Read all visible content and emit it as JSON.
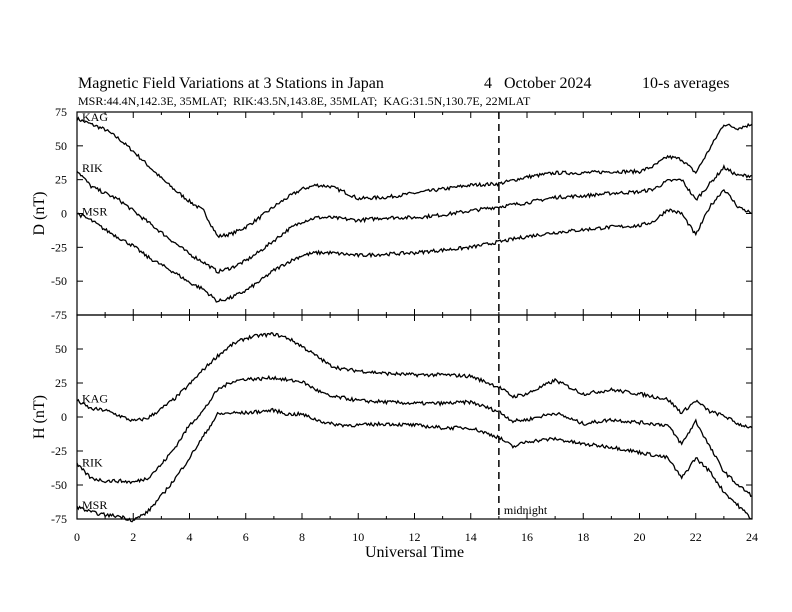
{
  "header": {
    "title": "Magnetic Field Variations at 3 Stations in Japan",
    "date": "4   October 2024",
    "averaging": "10-s averages",
    "stations": "MSR:44.4N,142.3E, 35MLAT;  RIK:43.5N,143.8E, 35MLAT;  KAG:31.5N,130.7E, 22MLAT"
  },
  "chart_data": [
    {
      "type": "line",
      "ylabel": "D (nT)",
      "xlabel": "",
      "xlim": [
        0,
        24
      ],
      "ylim": [
        -75,
        75
      ],
      "yticks": [
        75,
        50,
        25,
        0,
        -25,
        -50,
        -75
      ],
      "series": [
        {
          "name": "KAG",
          "x": [
            0,
            0.5,
            1,
            1.5,
            2,
            2.5,
            3,
            3.5,
            4,
            4.5,
            5,
            5.5,
            6,
            6.5,
            7,
            7.5,
            8,
            8.5,
            9,
            9.5,
            10,
            11,
            12,
            13,
            14,
            15,
            16,
            17,
            18,
            19,
            20,
            20.5,
            21,
            21.5,
            22,
            22.5,
            23,
            23.5,
            24
          ],
          "y": [
            70,
            66,
            62,
            55,
            46,
            36,
            26,
            17,
            9,
            2,
            -17,
            -15,
            -10,
            -3,
            5,
            12,
            18,
            21,
            20,
            16,
            11,
            12,
            15,
            18,
            21,
            22,
            27,
            30,
            30,
            31,
            31,
            35,
            42,
            40,
            30,
            48,
            66,
            63,
            66
          ]
        },
        {
          "name": "RIK",
          "x": [
            0,
            0.5,
            1,
            1.5,
            2,
            2.5,
            3,
            3.5,
            4,
            4.5,
            5,
            5.5,
            6,
            6.5,
            7,
            7.5,
            8,
            8.5,
            9,
            9.5,
            10,
            11,
            12,
            13,
            14,
            15,
            16,
            17,
            18,
            19,
            20,
            20.5,
            21,
            21.5,
            22,
            22.5,
            23,
            23.5,
            24
          ],
          "y": [
            32,
            20,
            15,
            10,
            2,
            -6,
            -14,
            -22,
            -30,
            -36,
            -43,
            -40,
            -35,
            -28,
            -20,
            -12,
            -6,
            -3,
            -3,
            -4,
            -5,
            -3,
            -3,
            -1,
            2,
            5,
            8,
            12,
            13,
            15,
            16,
            18,
            24,
            25,
            10,
            22,
            34,
            28,
            28
          ]
        },
        {
          "name": "MSR",
          "x": [
            0,
            0.5,
            1,
            1.5,
            2,
            2.5,
            3,
            3.5,
            4,
            4.5,
            5,
            5.5,
            6,
            6.5,
            7,
            7.5,
            8,
            8.5,
            9,
            9.5,
            10,
            11,
            12,
            13,
            14,
            15,
            16,
            17,
            18,
            19,
            20,
            20.5,
            21,
            21.5,
            22,
            22.5,
            23,
            23.5,
            24
          ],
          "y": [
            0,
            -5,
            -12,
            -18,
            -24,
            -32,
            -38,
            -44,
            -51,
            -56,
            -65,
            -62,
            -57,
            -50,
            -42,
            -36,
            -31,
            -29,
            -29,
            -30,
            -31,
            -30,
            -29,
            -27,
            -25,
            -21,
            -17,
            -14,
            -12,
            -10,
            -9,
            -6,
            3,
            0,
            -16,
            5,
            18,
            5,
            0
          ]
        }
      ]
    },
    {
      "type": "line",
      "ylabel": "H (nT)",
      "xlabel": "Universal Time",
      "xlim": [
        0,
        24
      ],
      "ylim": [
        -75,
        75
      ],
      "yticks": [
        50,
        25,
        0,
        -25,
        -50,
        -75
      ],
      "xticks": [
        0,
        2,
        4,
        6,
        8,
        10,
        12,
        14,
        16,
        18,
        20,
        22,
        24
      ],
      "annotation": {
        "x": 15,
        "label": "midnight"
      },
      "series": [
        {
          "name": "KAG",
          "x": [
            0,
            0.5,
            1,
            1.5,
            2,
            2.5,
            3,
            3.5,
            4,
            4.5,
            5,
            5.5,
            6,
            6.5,
            7,
            7.5,
            8,
            8.5,
            9,
            9.5,
            10,
            11,
            12,
            13,
            14,
            15,
            15.5,
            16,
            17,
            18,
            19,
            20,
            21,
            21.5,
            22,
            22.5,
            23,
            23.5,
            24
          ],
          "y": [
            12,
            6,
            5,
            1,
            -3,
            -1,
            6,
            14,
            24,
            35,
            45,
            53,
            58,
            60,
            61,
            58,
            52,
            45,
            38,
            35,
            34,
            32,
            31,
            31,
            30,
            22,
            15,
            17,
            27,
            17,
            20,
            17,
            13,
            3,
            12,
            4,
            1,
            -5,
            -8
          ]
        },
        {
          "name": "RIK",
          "x": [
            0,
            0.5,
            1,
            1.5,
            2,
            2.5,
            3,
            3.5,
            4,
            4.5,
            5,
            5.5,
            6,
            6.5,
            7,
            7.5,
            8,
            8.5,
            9,
            9.5,
            10,
            11,
            12,
            13,
            14,
            15,
            15.5,
            16,
            17,
            18,
            19,
            20,
            21,
            21.5,
            22,
            22.5,
            23,
            23.5,
            24
          ],
          "y": [
            -35,
            -45,
            -47,
            -47,
            -48,
            -45,
            -35,
            -22,
            -6,
            5,
            20,
            26,
            28,
            28,
            29,
            27,
            26,
            20,
            15,
            14,
            12,
            11,
            10,
            10,
            11,
            4,
            -3,
            -2,
            3,
            -5,
            -2,
            -4,
            -6,
            -20,
            -3,
            -22,
            -40,
            -50,
            -58
          ]
        },
        {
          "name": "MSR",
          "x": [
            0,
            0.5,
            1,
            1.5,
            2,
            2.5,
            3,
            3.5,
            4,
            4.5,
            5,
            5.5,
            6,
            6.5,
            7,
            7.5,
            8,
            8.5,
            9,
            9.5,
            10,
            11,
            12,
            13,
            14,
            15,
            15.5,
            16,
            17,
            18,
            19,
            20,
            21,
            21.5,
            22,
            22.5,
            23,
            23.5,
            24
          ],
          "y": [
            -66,
            -70,
            -72,
            -73,
            -76,
            -70,
            -58,
            -45,
            -30,
            -14,
            2,
            3,
            3,
            4,
            5,
            2,
            2,
            -2,
            -5,
            -6,
            -6,
            -5,
            -6,
            -8,
            -8,
            -15,
            -22,
            -18,
            -16,
            -20,
            -22,
            -26,
            -30,
            -45,
            -30,
            -40,
            -55,
            -65,
            -75
          ]
        }
      ]
    }
  ]
}
